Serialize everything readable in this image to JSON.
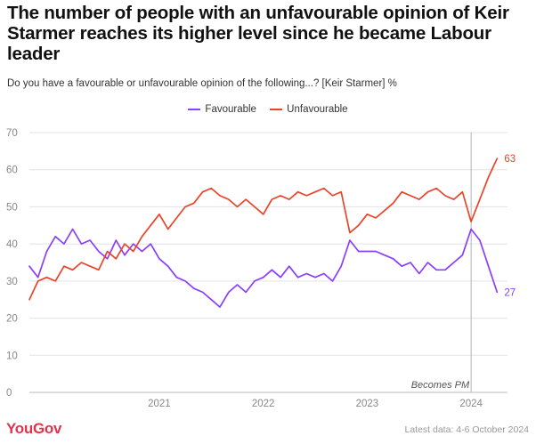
{
  "header": {
    "title": "The number of people with an unfavourable opinion of Keir Starmer reaches its higher level since he became Labour leader",
    "subtitle": "Do you have a favourable or unfavourable opinion of the following...? [Keir Starmer] %"
  },
  "legend": {
    "favourable": "Favourable",
    "unfavourable": "Unfavourable"
  },
  "footer": {
    "logo": "YouGov",
    "note": "Latest data: 4-6 October 2024"
  },
  "colors": {
    "favourable": "#8a3ffc",
    "unfavourable": "#ea4428",
    "grid": "#e3e3e3",
    "marker": "#b3b3b3"
  },
  "chart_data": {
    "type": "line",
    "x_axis": {
      "ticks": [
        "2021",
        "2022",
        "2023",
        "2024"
      ],
      "range": [
        "2020-04",
        "2024-10"
      ]
    },
    "y_axis": {
      "ticks": [
        0,
        10,
        20,
        30,
        40,
        50,
        60,
        70
      ],
      "ylim": [
        0,
        70
      ]
    },
    "grid": true,
    "legend_position": "top-center",
    "annotation": {
      "label": "Becomes PM",
      "x": "2024-07"
    },
    "series": [
      {
        "name": "Favourable",
        "color": "#8a3ffc",
        "end_label": "27",
        "points": [
          [
            "2020-04",
            34
          ],
          [
            "2020-05",
            31
          ],
          [
            "2020-06",
            38
          ],
          [
            "2020-07",
            42
          ],
          [
            "2020-08",
            40
          ],
          [
            "2020-09",
            44
          ],
          [
            "2020-10",
            40
          ],
          [
            "2020-11",
            41
          ],
          [
            "2020-12",
            38
          ],
          [
            "2021-01",
            36
          ],
          [
            "2021-02",
            41
          ],
          [
            "2021-03",
            37
          ],
          [
            "2021-04",
            40
          ],
          [
            "2021-05",
            38
          ],
          [
            "2021-06",
            40
          ],
          [
            "2021-07",
            36
          ],
          [
            "2021-08",
            34
          ],
          [
            "2021-09",
            31
          ],
          [
            "2021-10",
            30
          ],
          [
            "2021-11",
            28
          ],
          [
            "2021-12",
            27
          ],
          [
            "2022-01",
            25
          ],
          [
            "2022-02",
            23
          ],
          [
            "2022-03",
            27
          ],
          [
            "2022-04",
            29
          ],
          [
            "2022-05",
            27
          ],
          [
            "2022-06",
            30
          ],
          [
            "2022-07",
            31
          ],
          [
            "2022-08",
            33
          ],
          [
            "2022-09",
            31
          ],
          [
            "2022-10",
            34
          ],
          [
            "2022-11",
            31
          ],
          [
            "2022-12",
            32
          ],
          [
            "2023-01",
            31
          ],
          [
            "2023-02",
            32
          ],
          [
            "2023-03",
            30
          ],
          [
            "2023-04",
            34
          ],
          [
            "2023-05",
            41
          ],
          [
            "2023-06",
            38
          ],
          [
            "2023-07",
            38
          ],
          [
            "2023-08",
            38
          ],
          [
            "2023-09",
            37
          ],
          [
            "2023-10",
            36
          ],
          [
            "2023-11",
            34
          ],
          [
            "2023-12",
            35
          ],
          [
            "2024-01",
            32
          ],
          [
            "2024-02",
            35
          ],
          [
            "2024-03",
            33
          ],
          [
            "2024-04",
            33
          ],
          [
            "2024-05",
            35
          ],
          [
            "2024-06",
            37
          ],
          [
            "2024-07",
            44
          ],
          [
            "2024-08",
            41
          ],
          [
            "2024-09",
            34
          ],
          [
            "2024-10",
            27
          ]
        ]
      },
      {
        "name": "Unfavourable",
        "color": "#ea4428",
        "end_label": "63",
        "points": [
          [
            "2020-04",
            25
          ],
          [
            "2020-05",
            30
          ],
          [
            "2020-06",
            31
          ],
          [
            "2020-07",
            30
          ],
          [
            "2020-08",
            34
          ],
          [
            "2020-09",
            33
          ],
          [
            "2020-10",
            35
          ],
          [
            "2020-11",
            34
          ],
          [
            "2020-12",
            33
          ],
          [
            "2021-01",
            38
          ],
          [
            "2021-02",
            36
          ],
          [
            "2021-03",
            40
          ],
          [
            "2021-04",
            38
          ],
          [
            "2021-05",
            42
          ],
          [
            "2021-06",
            45
          ],
          [
            "2021-07",
            48
          ],
          [
            "2021-08",
            44
          ],
          [
            "2021-09",
            47
          ],
          [
            "2021-10",
            50
          ],
          [
            "2021-11",
            51
          ],
          [
            "2021-12",
            54
          ],
          [
            "2022-01",
            55
          ],
          [
            "2022-02",
            53
          ],
          [
            "2022-03",
            52
          ],
          [
            "2022-04",
            50
          ],
          [
            "2022-05",
            52
          ],
          [
            "2022-06",
            50
          ],
          [
            "2022-07",
            48
          ],
          [
            "2022-08",
            52
          ],
          [
            "2022-09",
            53
          ],
          [
            "2022-10",
            52
          ],
          [
            "2022-11",
            54
          ],
          [
            "2022-12",
            53
          ],
          [
            "2023-01",
            54
          ],
          [
            "2023-02",
            55
          ],
          [
            "2023-03",
            53
          ],
          [
            "2023-04",
            54
          ],
          [
            "2023-05",
            43
          ],
          [
            "2023-06",
            45
          ],
          [
            "2023-07",
            48
          ],
          [
            "2023-08",
            47
          ],
          [
            "2023-09",
            49
          ],
          [
            "2023-10",
            51
          ],
          [
            "2023-11",
            54
          ],
          [
            "2023-12",
            53
          ],
          [
            "2024-01",
            52
          ],
          [
            "2024-02",
            54
          ],
          [
            "2024-03",
            55
          ],
          [
            "2024-04",
            53
          ],
          [
            "2024-05",
            52
          ],
          [
            "2024-06",
            54
          ],
          [
            "2024-07",
            46
          ],
          [
            "2024-08",
            52
          ],
          [
            "2024-09",
            58
          ],
          [
            "2024-10",
            63
          ]
        ]
      }
    ]
  }
}
